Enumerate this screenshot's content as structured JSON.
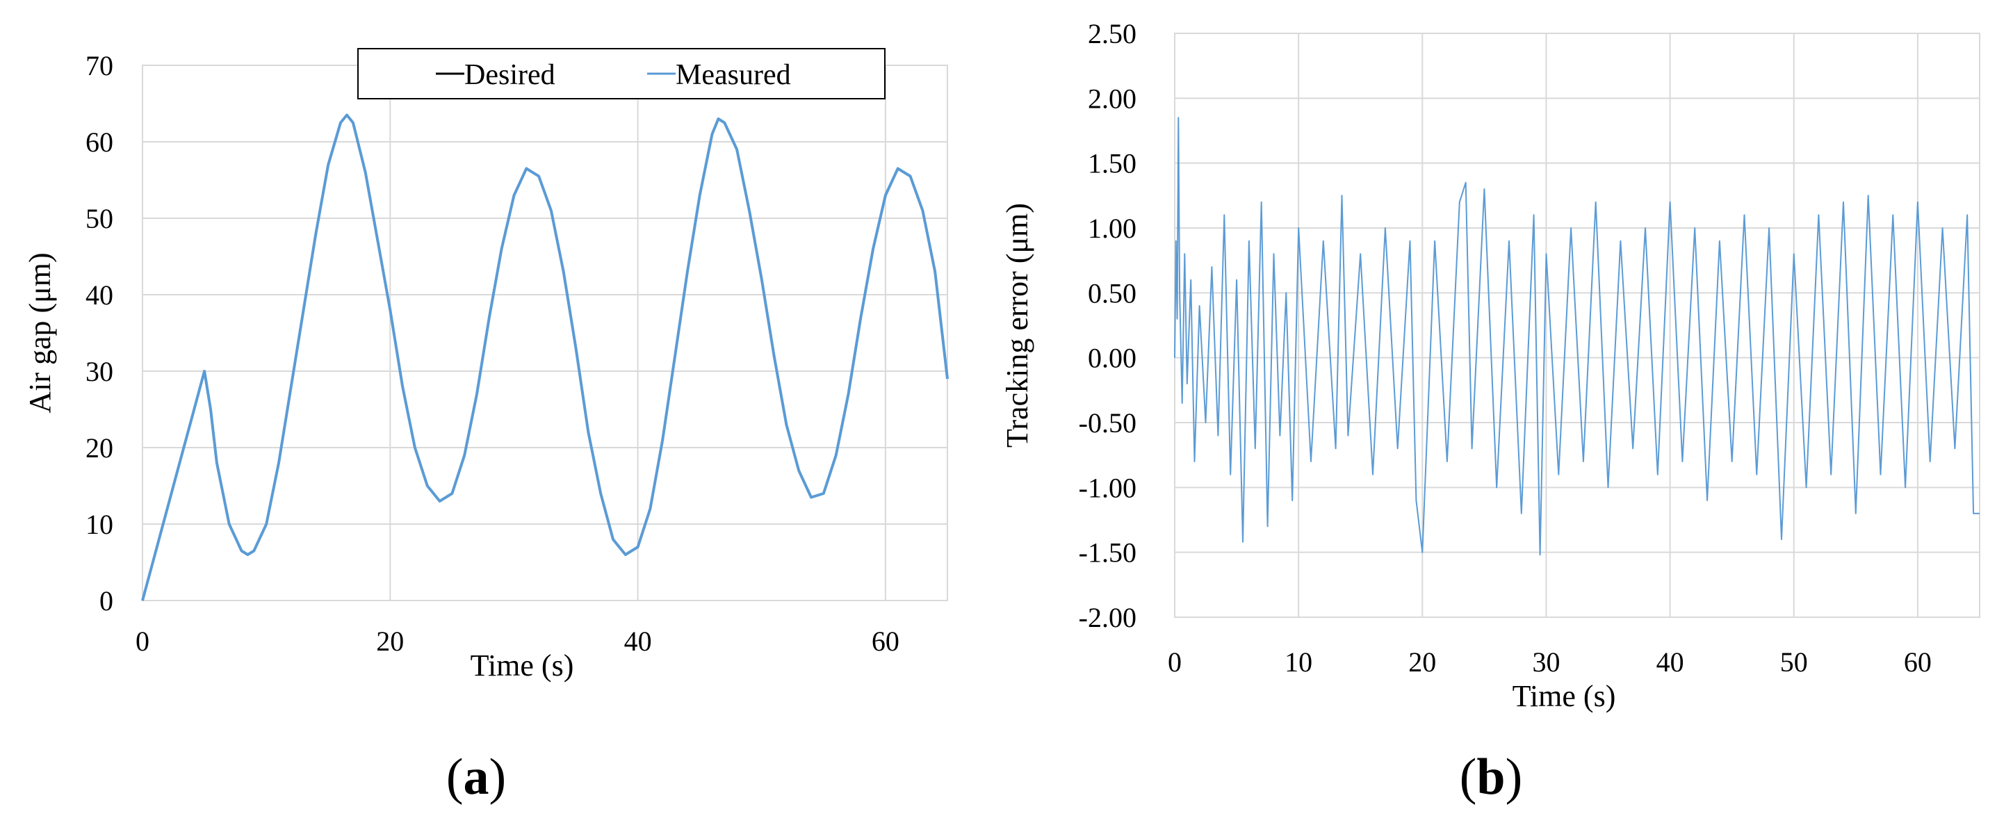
{
  "chart_data": [
    {
      "type": "line",
      "panel_label": "(a)",
      "panel_label_parts": [
        "(",
        "a",
        ")"
      ],
      "xlabel": "Time (s)",
      "ylabel": "Air gap (μm)",
      "xlim": [
        0,
        65
      ],
      "ylim": [
        0,
        70
      ],
      "x_ticks": [
        0,
        20,
        40,
        60
      ],
      "x_tick_labels": [
        "0",
        "20",
        "40",
        "60"
      ],
      "y_ticks": [
        0,
        10,
        20,
        30,
        40,
        50,
        60,
        70
      ],
      "y_tick_labels": [
        "0",
        "10",
        "20",
        "30",
        "40",
        "50",
        "60",
        "70"
      ],
      "grid": true,
      "legend": {
        "placement": "top-center",
        "entries": [
          "Desired",
          "Measured"
        ]
      },
      "colors": {
        "Desired": "#000000",
        "Measured": "#5b9bd5"
      },
      "series": [
        {
          "name": "Desired",
          "x": [
            0,
            1,
            2,
            3,
            4,
            5,
            5.5,
            6,
            7,
            8,
            8.5,
            9,
            10,
            11,
            12,
            13,
            14,
            15,
            16,
            16.5,
            17,
            18,
            19,
            20,
            21,
            22,
            23,
            24,
            25,
            26,
            27,
            28,
            29,
            30,
            31,
            32,
            33,
            34,
            35,
            36,
            37,
            38,
            39,
            40,
            41,
            42,
            43,
            44,
            45,
            46,
            46.5,
            47,
            48,
            49,
            50,
            51,
            52,
            53,
            54,
            55,
            56,
            57,
            58,
            59,
            60,
            61,
            62,
            63,
            64,
            65
          ],
          "y": [
            0,
            6,
            12,
            18,
            24,
            30,
            25,
            18,
            10,
            6.5,
            6,
            6.5,
            10,
            18,
            28,
            38,
            48,
            57,
            62.5,
            63.5,
            62.5,
            56,
            47,
            38,
            28,
            20,
            15,
            13,
            14,
            19,
            27,
            37,
            46,
            53,
            56.5,
            55.5,
            51,
            43,
            33,
            22,
            14,
            8,
            6,
            7,
            12,
            21,
            32,
            43,
            53,
            61,
            63,
            62.5,
            59,
            51,
            42,
            32,
            23,
            17,
            13.5,
            14,
            19,
            27,
            37,
            46,
            53,
            56.5,
            55.5,
            51,
            43,
            29
          ]
        },
        {
          "name": "Measured",
          "x": [
            0,
            1,
            2,
            3,
            4,
            5,
            5.5,
            6,
            7,
            8,
            8.5,
            9,
            10,
            11,
            12,
            13,
            14,
            15,
            16,
            16.5,
            17,
            18,
            19,
            20,
            21,
            22,
            23,
            24,
            25,
            26,
            27,
            28,
            29,
            30,
            31,
            32,
            33,
            34,
            35,
            36,
            37,
            38,
            39,
            40,
            41,
            42,
            43,
            44,
            45,
            46,
            46.5,
            47,
            48,
            49,
            50,
            51,
            52,
            53,
            54,
            55,
            56,
            57,
            58,
            59,
            60,
            61,
            62,
            63,
            64,
            65
          ],
          "y": [
            0,
            6,
            12,
            18,
            24,
            30,
            25,
            18,
            10,
            6.5,
            6,
            6.5,
            10,
            18,
            28,
            38,
            48,
            57,
            62.5,
            63.5,
            62.5,
            56,
            47,
            38,
            28,
            20,
            15,
            13,
            14,
            19,
            27,
            37,
            46,
            53,
            56.5,
            55.5,
            51,
            43,
            33,
            22,
            14,
            8,
            6,
            7,
            12,
            21,
            32,
            43,
            53,
            61,
            63,
            62.5,
            59,
            51,
            42,
            32,
            23,
            17,
            13.5,
            14,
            19,
            27,
            37,
            46,
            53,
            56.5,
            55.5,
            51,
            43,
            29
          ]
        }
      ]
    },
    {
      "type": "line",
      "panel_label": "(b)",
      "panel_label_parts": [
        "(",
        "b",
        ")"
      ],
      "xlabel": "Time (s)",
      "ylabel": "Tracking error (μm)",
      "xlim": [
        0,
        65
      ],
      "ylim": [
        -2,
        2.5
      ],
      "x_ticks": [
        0,
        10,
        20,
        30,
        40,
        50,
        60
      ],
      "x_tick_labels": [
        "0",
        "10",
        "20",
        "30",
        "40",
        "50",
        "60"
      ],
      "y_ticks": [
        -2,
        -1.5,
        -1,
        -0.5,
        0,
        0.5,
        1,
        1.5,
        2,
        2.5
      ],
      "y_tick_labels": [
        "-2.00",
        "-1.50",
        "-1.00",
        "-0.50",
        "0.00",
        "0.50",
        "1.00",
        "1.50",
        "2.00",
        "2.50"
      ],
      "grid": true,
      "colors": {
        "line": "#5b9bd5"
      },
      "series": [
        {
          "x": [
            0,
            0.1,
            0.2,
            0.3,
            0.4,
            0.6,
            0.8,
            1,
            1.3,
            1.6,
            2,
            2.5,
            3,
            3.5,
            4,
            4.5,
            5,
            5.5,
            6,
            6.5,
            7,
            7.5,
            8,
            8.5,
            9,
            9.5,
            10,
            11,
            12,
            13,
            13.5,
            14,
            15,
            16,
            17,
            18,
            19,
            19.5,
            20,
            21,
            22,
            23,
            23.5,
            24,
            25,
            26,
            27,
            28,
            29,
            29.5,
            30,
            31,
            32,
            33,
            34,
            35,
            36,
            37,
            38,
            39,
            40,
            41,
            42,
            43,
            44,
            45,
            46,
            47,
            48,
            49,
            50,
            51,
            52,
            53,
            54,
            55,
            56,
            57,
            58,
            59,
            60,
            61,
            62,
            63,
            64,
            64.5,
            65
          ],
          "y": [
            0,
            0.9,
            0.3,
            1.85,
            0.5,
            -0.35,
            0.8,
            -0.2,
            0.6,
            -0.8,
            0.4,
            -0.5,
            0.7,
            -0.6,
            1.1,
            -0.9,
            0.6,
            -1.42,
            0.9,
            -0.7,
            1.2,
            -1.3,
            0.8,
            -0.6,
            0.5,
            -1.1,
            1.0,
            -0.8,
            0.9,
            -0.7,
            1.25,
            -0.6,
            0.8,
            -0.9,
            1.0,
            -0.7,
            0.9,
            -1.1,
            -1.5,
            0.9,
            -0.8,
            1.2,
            1.35,
            -0.7,
            1.3,
            -1.0,
            0.9,
            -1.2,
            1.1,
            -1.52,
            0.8,
            -0.9,
            1.0,
            -0.8,
            1.2,
            -1.0,
            0.9,
            -0.7,
            1.0,
            -0.9,
            1.2,
            -0.8,
            1.0,
            -1.1,
            0.9,
            -0.8,
            1.1,
            -0.9,
            1.0,
            -1.4,
            0.8,
            -1.0,
            1.1,
            -0.9,
            1.2,
            -1.2,
            1.25,
            -0.9,
            1.1,
            -1.0,
            1.2,
            -0.8,
            1.0,
            -0.7,
            1.1,
            -1.2,
            -1.2
          ]
        }
      ]
    }
  ]
}
